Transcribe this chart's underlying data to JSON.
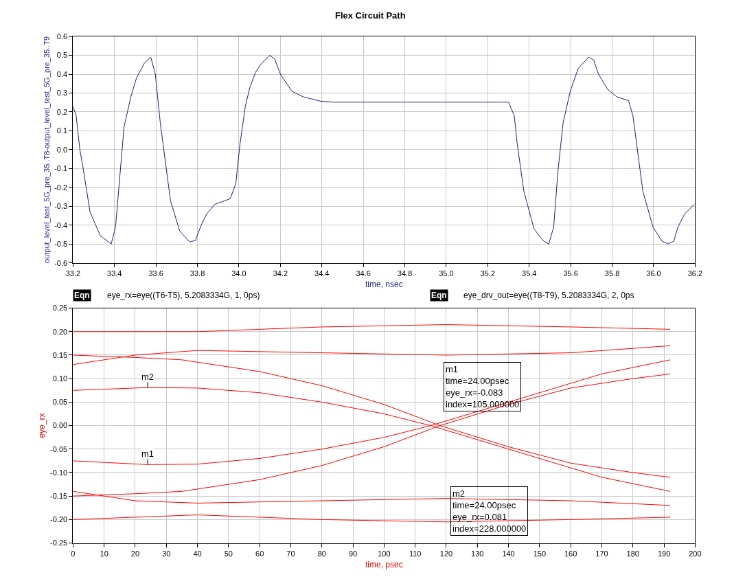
{
  "chart_data": [
    {
      "type": "line",
      "title": "Flex Circuit Path",
      "xlabel": "time, nsec",
      "ylabel": "output_level_test_5G_pre_35..T8-output_level_test_5G_pre_35..T9",
      "grid": true,
      "marker": "none",
      "line_style": "solid",
      "xlim": [
        33.2,
        36.2
      ],
      "xticks": [
        {
          "value": 33.2,
          "label": "33.2"
        },
        {
          "value": 33.4,
          "label": "33.4"
        },
        {
          "value": 33.6,
          "label": "33.6"
        },
        {
          "value": 33.8,
          "label": "33.8"
        },
        {
          "value": 34.0,
          "label": "34.0"
        },
        {
          "value": 34.2,
          "label": "34.2"
        },
        {
          "value": 34.4,
          "label": "34.4"
        },
        {
          "value": 34.6,
          "label": "34.6"
        },
        {
          "value": 34.8,
          "label": "34.8"
        },
        {
          "value": 35.0,
          "label": "35.0"
        },
        {
          "value": 35.2,
          "label": "35.2"
        },
        {
          "value": 35.4,
          "label": "35.4"
        },
        {
          "value": 35.6,
          "label": "35.6"
        },
        {
          "value": 35.8,
          "label": "35.8"
        },
        {
          "value": 36.0,
          "label": "36.0"
        },
        {
          "value": 36.2,
          "label": "36.2"
        }
      ],
      "ylim": [
        -0.6,
        0.6
      ],
      "yticks": [
        -0.6,
        -0.5,
        -0.4,
        -0.3,
        -0.2,
        -0.1,
        {
          "value": 0,
          "label": "0.0"
        },
        0.1,
        0.2,
        0.3,
        0.4,
        0.5,
        0.6
      ],
      "series": [
        {
          "color": "#1c1c8c",
          "x": [
            33.2,
            33.215,
            33.233,
            33.249,
            33.282,
            33.331,
            33.384,
            33.405,
            33.446,
            33.479,
            33.506,
            33.545,
            33.575,
            33.597,
            33.621,
            33.67,
            33.714,
            33.763,
            33.791,
            33.818,
            33.845,
            33.884,
            33.958,
            33.985,
            34.004,
            34.031,
            34.053,
            34.08,
            34.107,
            34.149,
            34.173,
            34.2,
            34.255,
            34.31,
            34.397,
            34.46,
            35.3,
            35.328,
            35.341,
            35.374,
            35.423,
            35.47,
            35.494,
            35.518,
            35.538,
            35.563,
            35.598,
            35.636,
            35.686,
            35.711,
            35.734,
            35.778,
            35.822,
            35.879,
            35.9,
            35.948,
            35.997,
            36.04,
            36.071,
            36.097,
            36.117,
            36.15,
            36.196
          ],
          "values": [
            0.23,
            0.18,
            0.0,
            -0.1,
            -0.33,
            -0.455,
            -0.5,
            -0.41,
            0.12,
            0.28,
            0.38,
            0.46,
            0.49,
            0.4,
            0.14,
            -0.27,
            -0.43,
            -0.49,
            -0.48,
            -0.4,
            -0.34,
            -0.29,
            -0.26,
            -0.18,
            0.02,
            0.23,
            0.33,
            0.41,
            0.455,
            0.5,
            0.48,
            0.4,
            0.31,
            0.28,
            0.256,
            0.252,
            0.252,
            0.18,
            0.04,
            -0.22,
            -0.42,
            -0.485,
            -0.5,
            -0.41,
            -0.12,
            0.14,
            0.31,
            0.43,
            0.49,
            0.475,
            0.4,
            0.32,
            0.28,
            0.26,
            0.18,
            -0.22,
            -0.41,
            -0.485,
            -0.5,
            -0.485,
            -0.41,
            -0.34,
            -0.29
          ]
        }
      ]
    },
    {
      "type": "line",
      "xlabel": "time, psec",
      "ylabel": "eye_rx",
      "grid": true,
      "marker": "none",
      "line_style": "solid",
      "xlim": [
        0,
        200
      ],
      "xticks": [
        0,
        10,
        20,
        30,
        40,
        50,
        60,
        70,
        80,
        90,
        100,
        110,
        120,
        130,
        140,
        150,
        160,
        170,
        180,
        190,
        200
      ],
      "ylim": [
        -0.25,
        0.25
      ],
      "yticks": [
        -0.25,
        {
          "value": -0.2,
          "label": "-0.20"
        },
        -0.15,
        {
          "value": -0.1,
          "label": "-0.10"
        },
        -0.05,
        {
          "value": 0,
          "label": "0.00"
        },
        0.05,
        {
          "value": 0.1,
          "label": "0.10"
        },
        0.15,
        {
          "value": 0.2,
          "label": "0.20"
        },
        0.25
      ],
      "annotations": [
        "Eqn",
        "eye_rx=eye((T6-T5), 5.2083334G, 1, 0ps)",
        "Eqn",
        "eye_drv_out=eye((T8-T9), 5.2083334G, 2, 0ps",
        "m1\ntime=24.00psec\neye_rx=-0.083\nindex=105.000000",
        "m2\ntime=24.00psec\neye_rx=0.081\nindex=228.000000",
        {
          "text": "m2",
          "x": 24,
          "y": 0.081
        },
        {
          "text": "m1",
          "x": 24,
          "y": -0.083
        }
      ],
      "series": [
        {
          "color": "#ff0000",
          "x": [
            0,
            40,
            80,
            120,
            160,
            192
          ],
          "values": [
            0.2,
            0.2,
            0.21,
            0.215,
            0.21,
            0.205
          ]
        },
        {
          "color": "#ff0000",
          "x": [
            0,
            20,
            40,
            80,
            120,
            160,
            192
          ],
          "values": [
            0.13,
            0.15,
            0.16,
            0.155,
            0.15,
            0.155,
            0.17
          ]
        },
        {
          "color": "#ff0000",
          "x": [
            0,
            20,
            35,
            60,
            80,
            100,
            118,
            140,
            160,
            180,
            192
          ],
          "values": [
            0.15,
            0.145,
            0.14,
            0.115,
            0.085,
            0.045,
            0.0,
            -0.045,
            -0.08,
            -0.1,
            -0.11
          ]
        },
        {
          "color": "#ff0000",
          "x": [
            0,
            24,
            40,
            60,
            80,
            100,
            115,
            140,
            170,
            192
          ],
          "values": [
            0.075,
            0.081,
            0.08,
            0.07,
            0.05,
            0.025,
            0.0,
            -0.05,
            -0.11,
            -0.14
          ]
        },
        {
          "color": "#ff0000",
          "x": [
            0,
            20,
            35,
            60,
            80,
            100,
            118,
            140,
            160,
            180,
            192
          ],
          "values": [
            -0.15,
            -0.145,
            -0.14,
            -0.115,
            -0.085,
            -0.045,
            0.0,
            0.045,
            0.08,
            0.1,
            0.11
          ]
        },
        {
          "color": "#ff0000",
          "x": [
            0,
            24,
            40,
            60,
            80,
            100,
            115,
            140,
            170,
            192
          ],
          "values": [
            -0.075,
            -0.083,
            -0.082,
            -0.07,
            -0.05,
            -0.025,
            0.0,
            0.05,
            0.11,
            0.14
          ]
        },
        {
          "color": "#ff0000",
          "x": [
            0,
            40,
            80,
            120,
            160,
            192
          ],
          "values": [
            -0.2,
            -0.19,
            -0.2,
            -0.205,
            -0.2,
            -0.195
          ]
        },
        {
          "color": "#ff0000",
          "x": [
            0,
            20,
            40,
            80,
            120,
            160,
            192
          ],
          "values": [
            -0.14,
            -0.16,
            -0.165,
            -0.16,
            -0.155,
            -0.16,
            -0.17
          ]
        }
      ]
    }
  ]
}
